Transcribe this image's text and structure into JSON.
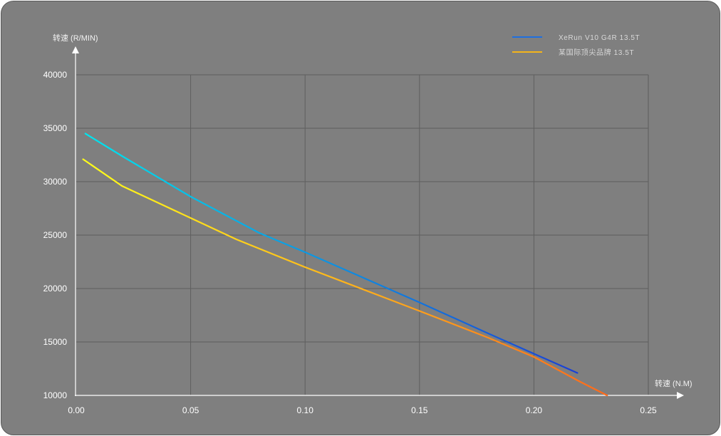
{
  "chart_data": {
    "type": "line",
    "title": "",
    "xlabel": "转速 (N.M)",
    "ylabel": "转速 (R/MIN)",
    "xlim": [
      0,
      0.25
    ],
    "ylim": [
      10000,
      40000
    ],
    "x_ticks": [
      "0.00",
      "0.05",
      "0.10",
      "0.15",
      "0.20",
      "0.25"
    ],
    "y_ticks": [
      "10000",
      "15000",
      "20000",
      "25000",
      "30000",
      "35000",
      "40000"
    ],
    "x_tick_values": [
      0,
      0.05,
      0.1,
      0.15,
      0.2,
      0.25
    ],
    "y_tick_values": [
      10000,
      15000,
      20000,
      25000,
      30000,
      35000,
      40000
    ],
    "grid": true,
    "legend_position": "top-right",
    "series": [
      {
        "name": "XeRun V10 G4R 13.5T",
        "color_start": "#00e5ee",
        "color_end": "#1a3fd6",
        "points": [
          [
            0.004,
            34500
          ],
          [
            0.02,
            32400
          ],
          [
            0.05,
            28600
          ],
          [
            0.08,
            25200
          ],
          [
            0.1,
            23400
          ],
          [
            0.15,
            18700
          ],
          [
            0.18,
            15800
          ],
          [
            0.2,
            13900
          ],
          [
            0.219,
            12100
          ]
        ]
      },
      {
        "name": "某国际顶尖品牌 13.5T",
        "color_start": "#ffff1a",
        "color_end": "#ff6a1a",
        "points": [
          [
            0.003,
            32100
          ],
          [
            0.02,
            29600
          ],
          [
            0.05,
            26600
          ],
          [
            0.07,
            24600
          ],
          [
            0.1,
            22000
          ],
          [
            0.15,
            17900
          ],
          [
            0.18,
            15400
          ],
          [
            0.2,
            13600
          ],
          [
            0.22,
            11300
          ],
          [
            0.232,
            10000
          ]
        ]
      }
    ]
  }
}
